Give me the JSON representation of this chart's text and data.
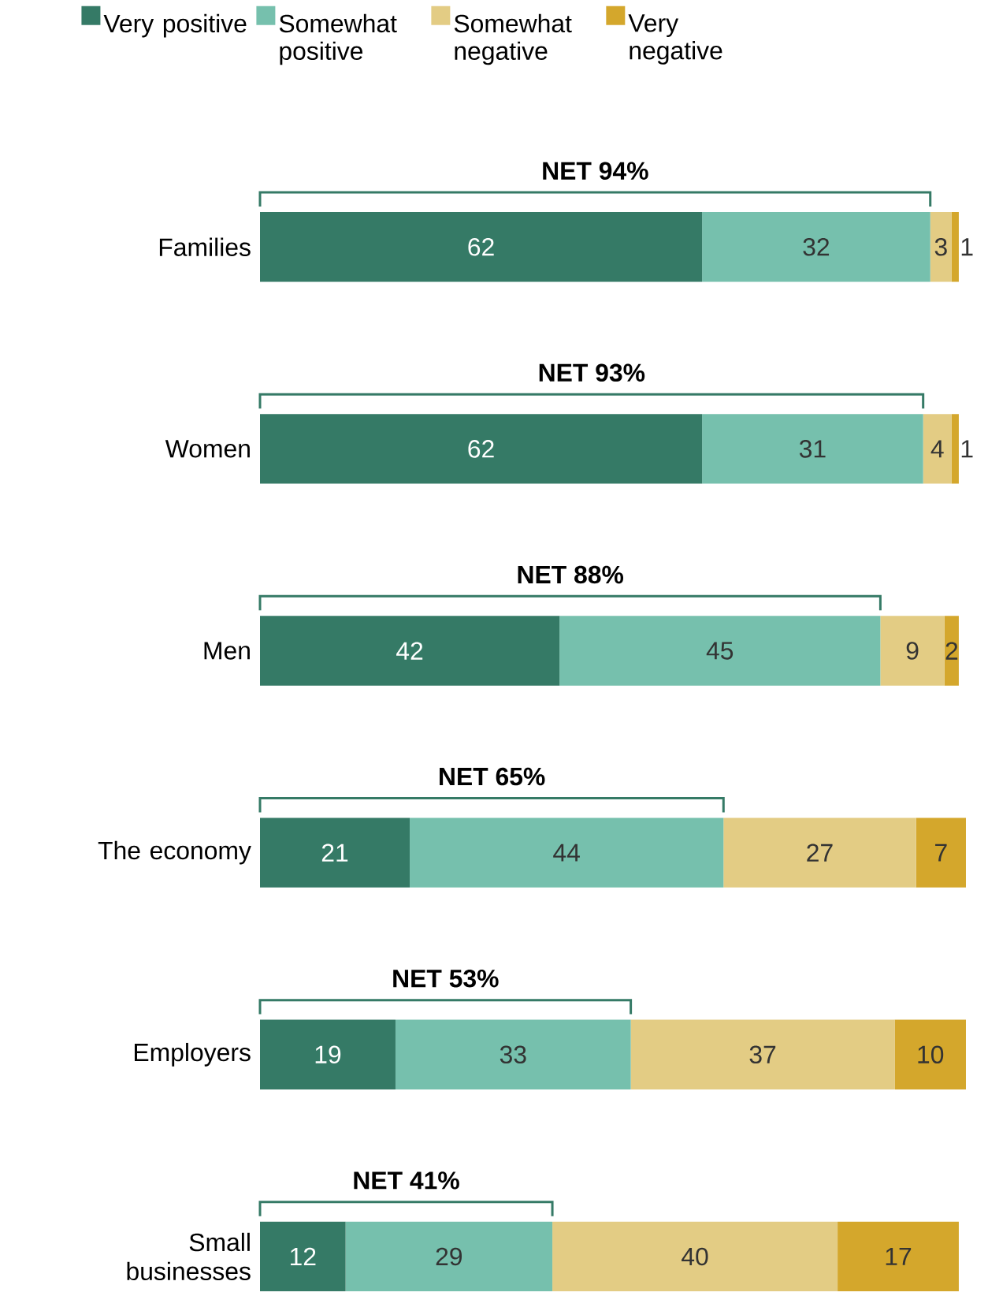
{
  "chart_data": {
    "type": "bar",
    "orientation": "horizontal",
    "stacked": true,
    "data_labels": true,
    "legend": "top",
    "categories": [
      "Families",
      "Women",
      "Men",
      "The economy",
      "Employers",
      "Small businesses"
    ],
    "series": [
      {
        "name": "Very positive",
        "color": "#357a66",
        "values": [
          62,
          62,
          42,
          21,
          19,
          12
        ]
      },
      {
        "name": "Somewhat positive",
        "color": "#76c0ad",
        "values": [
          32,
          31,
          45,
          44,
          33,
          29
        ]
      },
      {
        "name": "Somewhat negative",
        "color": "#e3cc84",
        "values": [
          3,
          4,
          9,
          27,
          37,
          40
        ]
      },
      {
        "name": "Very negative",
        "color": "#d4a72c",
        "values": [
          1,
          1,
          2,
          7,
          10,
          17
        ]
      }
    ],
    "annotations": [
      "NET 94%",
      "NET 93%",
      "NET 88%",
      "NET 65%",
      "NET 53%",
      "NET 41%"
    ]
  }
}
